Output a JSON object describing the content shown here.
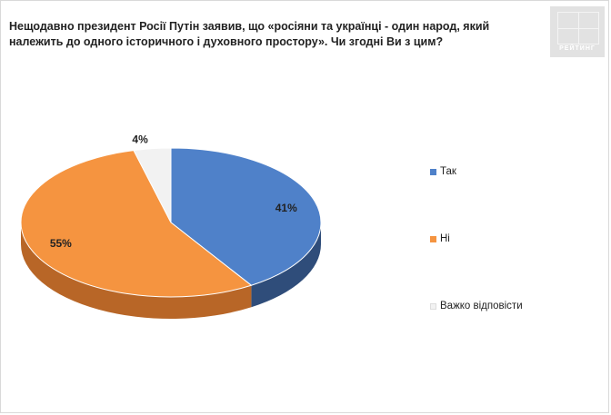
{
  "chart_data": {
    "type": "pie",
    "title": "Нещодавно президент Росії Путін заявив, що «росіяни та українці - один народ, який належить до одного історичного і духовного простору». Чи згодні Ви з цим?",
    "categories": [
      "Так",
      "Ні",
      "Важко відповісти"
    ],
    "values": [
      41,
      55,
      4
    ],
    "value_suffix": "%",
    "colors": [
      "#4f81c9",
      "#f59440",
      "#f2f2f2"
    ],
    "side_colors": [
      "#2f4d7a",
      "#b86627",
      "#c8c8c8"
    ],
    "legend_position": "right",
    "three_d": true
  },
  "brand": {
    "logo_text": "РЕЙТИНГ"
  }
}
